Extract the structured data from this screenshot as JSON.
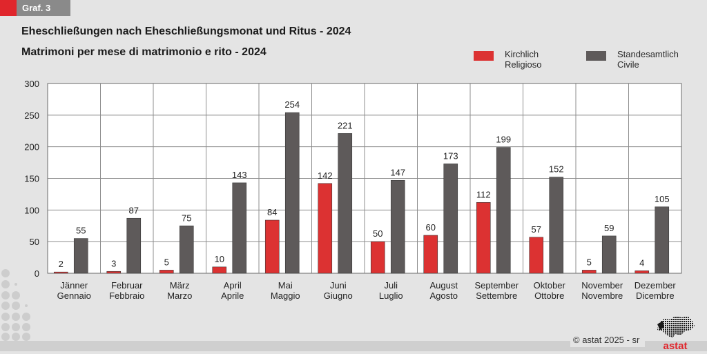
{
  "header": {
    "tag": "Graf. 3"
  },
  "colors": {
    "religious": "#dc3232",
    "civil": "#5e5a5a",
    "accent": "#e0262c"
  },
  "footer": {
    "copyright": "© astat 2025 - sr",
    "logo_text": "astat"
  },
  "chart_data": {
    "type": "bar",
    "title": "Eheschließungen nach Eheschließungsmonat und Ritus - 2024",
    "subtitle": "Matrimoni per mese di matrimonio e rito - 2024",
    "xlabel": "",
    "ylabel": "",
    "ylim": [
      0,
      300
    ],
    "yticks": [
      "0",
      "50",
      "100",
      "150",
      "200",
      "250",
      "300"
    ],
    "grid": true,
    "legend_position": "top-right",
    "categories": [
      [
        "Jänner",
        "Gennaio"
      ],
      [
        "Februar",
        "Febbraio"
      ],
      [
        "März",
        "Marzo"
      ],
      [
        "April",
        "Aprile"
      ],
      [
        "Mai",
        "Maggio"
      ],
      [
        "Juni",
        "Giugno"
      ],
      [
        "Juli",
        "Luglio"
      ],
      [
        "August",
        "Agosto"
      ],
      [
        "September",
        "Settembre"
      ],
      [
        "Oktober",
        "Ottobre"
      ],
      [
        "November",
        "Novembre"
      ],
      [
        "Dezember",
        "Dicembre"
      ]
    ],
    "series": [
      {
        "name": [
          "Kirchlich",
          "Religioso"
        ],
        "color": "#dc3232",
        "values": [
          2,
          3,
          5,
          10,
          84,
          142,
          50,
          60,
          112,
          57,
          5,
          4
        ]
      },
      {
        "name": [
          "Standesamtlich",
          "Civile"
        ],
        "color": "#5e5a5a",
        "values": [
          55,
          87,
          75,
          143,
          254,
          221,
          147,
          173,
          199,
          152,
          59,
          105
        ]
      }
    ]
  }
}
